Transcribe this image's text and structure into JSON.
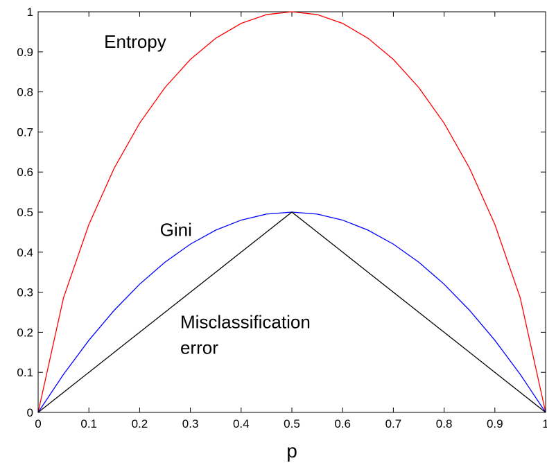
{
  "chart_data": {
    "type": "line",
    "title": "",
    "xlabel": "p",
    "ylabel": "",
    "xlim": [
      0,
      1
    ],
    "ylim": [
      0,
      1
    ],
    "grid": false,
    "xticks": [
      "0",
      "0.1",
      "0.2",
      "0.3",
      "0.4",
      "0.5",
      "0.6",
      "0.7",
      "0.8",
      "0.9",
      "1"
    ],
    "yticks": [
      "0",
      "0.1",
      "0.2",
      "0.3",
      "0.4",
      "0.5",
      "0.6",
      "0.7",
      "0.8",
      "0.9",
      "1"
    ],
    "x": [
      0,
      0.05,
      0.1,
      0.15,
      0.2,
      0.25,
      0.3,
      0.35,
      0.4,
      0.45,
      0.5,
      0.55,
      0.6,
      0.65,
      0.7,
      0.75,
      0.8,
      0.85,
      0.9,
      0.95,
      1
    ],
    "series": [
      {
        "color": "#ff0000",
        "values": [
          0,
          0.286,
          0.469,
          0.61,
          0.722,
          0.811,
          0.881,
          0.934,
          0.971,
          0.993,
          1,
          0.993,
          0.971,
          0.934,
          0.881,
          0.811,
          0.722,
          0.61,
          0.469,
          0.286,
          0
        ]
      },
      {
        "color": "#0000ff",
        "values": [
          0,
          0.095,
          0.18,
          0.255,
          0.32,
          0.375,
          0.42,
          0.455,
          0.48,
          0.495,
          0.5,
          0.495,
          0.48,
          0.455,
          0.42,
          0.375,
          0.32,
          0.255,
          0.18,
          0.095,
          0
        ]
      },
      {
        "color": "#000000",
        "values": [
          0,
          0.05,
          0.1,
          0.15,
          0.2,
          0.25,
          0.3,
          0.35,
          0.4,
          0.45,
          0.5,
          0.45,
          0.4,
          0.35,
          0.3,
          0.25,
          0.2,
          0.15,
          0.1,
          0.05,
          0
        ]
      }
    ],
    "annotations": [
      {
        "lines": [
          "Entropy"
        ],
        "x": 0.13,
        "y": 0.91
      },
      {
        "lines": [
          "Gini"
        ],
        "x": 0.24,
        "y": 0.44
      },
      {
        "lines": [
          "Misclassification",
          "error"
        ],
        "x": 0.28,
        "y": 0.21
      }
    ]
  }
}
